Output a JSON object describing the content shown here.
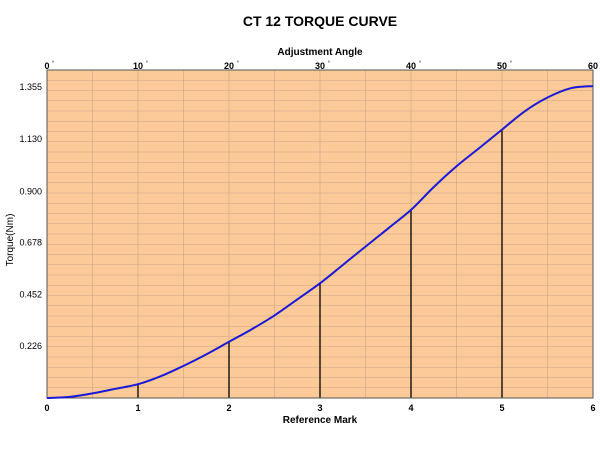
{
  "chart_data": {
    "type": "line",
    "title": "CT 12 TORQUE CURVE",
    "xlabel": "Reference Mark",
    "x2label": "Adjustment Angle",
    "ylabel": "Torque(Nm)",
    "xlim": [
      0,
      6
    ],
    "x2lim": [
      0,
      60
    ],
    "ylim": [
      0,
      1.43
    ],
    "x_ticks": [
      "0",
      "1",
      "2",
      "3",
      "4",
      "5",
      "6"
    ],
    "x2_ticks": [
      "0",
      "10",
      "20",
      "30",
      "40",
      "50",
      "60"
    ],
    "x2_unit": "°",
    "y_ticks": [
      "0.226",
      "0.452",
      "0.678",
      "0.900",
      "1.130",
      "1.355"
    ],
    "y_tick_values": [
      0.226,
      0.452,
      0.678,
      0.9,
      1.13,
      1.355
    ],
    "series": [
      {
        "color": "#1a1ad6",
        "x": [
          0,
          0.25,
          0.5,
          0.75,
          1,
          1.25,
          1.5,
          1.75,
          2,
          2.25,
          2.5,
          2.75,
          3,
          3.25,
          3.5,
          3.75,
          4,
          4.25,
          4.5,
          4.75,
          5,
          5.25,
          5.5,
          5.75,
          6
        ],
        "values": [
          0.0,
          0.005,
          0.02,
          0.04,
          0.06,
          0.095,
          0.14,
          0.19,
          0.245,
          0.3,
          0.36,
          0.43,
          0.5,
          0.58,
          0.66,
          0.74,
          0.82,
          0.92,
          1.01,
          1.09,
          1.17,
          1.25,
          1.31,
          1.35,
          1.36
        ]
      }
    ],
    "reference_lines_x": [
      1,
      2,
      3,
      4,
      5
    ],
    "grid": true,
    "plot_background": "#fcc999",
    "grid_color": "#c9a585"
  }
}
